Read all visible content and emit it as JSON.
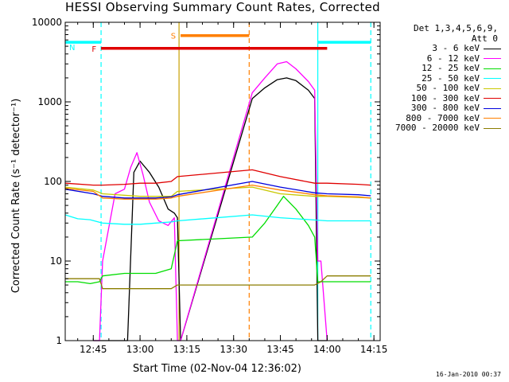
{
  "title": "HESSI Observing Summary Count Rates, Corrected",
  "footer_date": "16-Jan-2010 00:37",
  "legend_title_1": "Det 1,3,4,5,6,9,",
  "legend_title_2": "Att 0",
  "chart_data": {
    "type": "line",
    "xlabel": "Start Time (02-Nov-04 12:36:02)",
    "ylabel": "Corrected Count Rate (s⁻¹ detector⁻¹)",
    "yscale": "log",
    "ylim": [
      1,
      10000
    ],
    "xlim": [
      "12:36",
      "14:17"
    ],
    "x_ticks": [
      "12:45",
      "13:00",
      "13:15",
      "13:30",
      "13:45",
      "14:00",
      "14:15"
    ],
    "y_ticks": [
      "1",
      "10",
      "100",
      "1000",
      "10000"
    ],
    "legend_placement": "right",
    "flags": [
      {
        "label": "F",
        "color": "#e00000",
        "start": "12:47:30",
        "end": "14:00:00",
        "y": 4700
      },
      {
        "label": "S",
        "color": "#ff7f00",
        "start": "13:13:00",
        "end": "13:35:00",
        "y": 6800
      },
      {
        "label": "N",
        "color": "#00ffff",
        "start": "12:36:00",
        "end": "12:47:30",
        "y": 5600
      },
      {
        "label": "",
        "color": "#00ffff",
        "start": "13:57:00",
        "end": "14:14:00",
        "y": 5600
      }
    ],
    "markers": [
      {
        "time": "12:47:30",
        "color": "#00ffff",
        "style": "dashed"
      },
      {
        "time": "13:12:30",
        "color": "#c8a000",
        "style": "solid"
      },
      {
        "time": "13:35:00",
        "color": "#ff7f00",
        "style": "dashed"
      },
      {
        "time": "13:57:00",
        "color": "#00ffff",
        "style": "solid"
      },
      {
        "time": "14:14:00",
        "color": "#00ffff",
        "style": "dashed"
      }
    ],
    "series": [
      {
        "name": "3 - 6 keV",
        "color": "#000000",
        "x": [
          "12:45",
          "12:48",
          "12:52",
          "12:55",
          "12:56",
          "12:58",
          "13:00",
          "13:03",
          "13:06",
          "13:09",
          "13:11",
          "13:12",
          "13:13",
          "13:36",
          "13:40",
          "13:44",
          "13:47",
          "13:50",
          "13:54",
          "13:56",
          "13:57",
          "13:58",
          "14:00"
        ],
        "y": [
          1,
          1,
          1,
          1,
          1,
          130,
          180,
          130,
          85,
          45,
          40,
          35,
          1,
          1100,
          1500,
          1900,
          2000,
          1850,
          1400,
          1100,
          1,
          1,
          1
        ]
      },
      {
        "name": "6 - 12 keV",
        "color": "#ff00ff",
        "x": [
          "12:45",
          "12:47",
          "12:48",
          "12:52",
          "12:55",
          "12:57",
          "12:59",
          "13:01",
          "13:03",
          "13:06",
          "13:09",
          "13:11",
          "13:12",
          "13:13",
          "13:36",
          "13:40",
          "13:44",
          "13:47",
          "13:50",
          "13:54",
          "13:56",
          "13:57",
          "13:58",
          "14:00"
        ],
        "y": [
          1,
          1,
          10,
          70,
          80,
          150,
          230,
          120,
          55,
          32,
          28,
          35,
          1,
          1,
          1300,
          2000,
          3000,
          3200,
          2600,
          1800,
          1400,
          10,
          10,
          1
        ]
      },
      {
        "name": "12 - 25 keV",
        "color": "#00dd00",
        "x": [
          "12:36",
          "12:40",
          "12:44",
          "12:47",
          "12:48",
          "12:55",
          "13:00",
          "13:05",
          "13:10",
          "13:11",
          "13:12",
          "13:36",
          "13:40",
          "13:44",
          "13:46",
          "13:50",
          "13:54",
          "13:56",
          "13:57",
          "14:00",
          "14:05",
          "14:10",
          "14:14"
        ],
        "y": [
          5.5,
          5.5,
          5.2,
          5.5,
          6.5,
          7,
          7,
          7,
          8,
          12,
          18,
          20,
          30,
          50,
          65,
          45,
          28,
          20,
          5.5,
          5.5,
          5.5,
          5.5,
          5.5
        ]
      },
      {
        "name": "25 - 50 keV",
        "color": "#00ffff",
        "x": [
          "12:36",
          "12:40",
          "12:44",
          "12:48",
          "12:55",
          "13:00",
          "13:05",
          "13:10",
          "13:12",
          "13:36",
          "13:45",
          "13:55",
          "14:00",
          "14:05",
          "14:10",
          "14:14"
        ],
        "y": [
          38,
          34,
          33,
          30,
          29,
          29,
          30,
          31,
          32,
          38,
          35,
          33,
          32,
          32,
          32,
          32
        ]
      },
      {
        "name": "50 - 100 keV",
        "color": "#c8c800",
        "x": [
          "12:36",
          "12:45",
          "12:48",
          "13:00",
          "13:10",
          "13:12",
          "13:36",
          "13:45",
          "13:56",
          "14:00",
          "14:10",
          "14:14"
        ],
        "y": [
          85,
          78,
          70,
          65,
          65,
          75,
          85,
          70,
          65,
          65,
          63,
          62
        ]
      },
      {
        "name": "100 - 300 keV",
        "color": "#e00000",
        "x": [
          "12:36",
          "12:45",
          "12:48",
          "12:55",
          "13:00",
          "13:05",
          "13:10",
          "13:12",
          "13:36",
          "13:45",
          "13:56",
          "14:00",
          "14:10",
          "14:14"
        ],
        "y": [
          95,
          90,
          90,
          92,
          95,
          95,
          100,
          115,
          140,
          115,
          95,
          95,
          92,
          90
        ]
      },
      {
        "name": "300 - 800 keV",
        "color": "#0000dd",
        "x": [
          "12:36",
          "12:45",
          "12:48",
          "12:55",
          "13:00",
          "13:05",
          "13:10",
          "13:12",
          "13:36",
          "13:45",
          "13:56",
          "14:00",
          "14:10",
          "14:14"
        ],
        "y": [
          80,
          70,
          65,
          62,
          62,
          62,
          64,
          68,
          100,
          85,
          72,
          70,
          68,
          66
        ]
      },
      {
        "name": "800 - 7000 keV",
        "color": "#ff7f00",
        "x": [
          "12:36",
          "12:45",
          "12:48",
          "12:55",
          "13:00",
          "13:05",
          "13:10",
          "13:12",
          "13:36",
          "13:45",
          "13:56",
          "14:00",
          "14:10",
          "14:14"
        ],
        "y": [
          82,
          75,
          62,
          60,
          60,
          60,
          62,
          65,
          90,
          78,
          68,
          66,
          64,
          62
        ]
      },
      {
        "name": "7000 - 20000 keV",
        "color": "#8b7d00",
        "x": [
          "12:36",
          "12:40",
          "12:44",
          "12:47",
          "12:48",
          "12:55",
          "13:00",
          "13:05",
          "13:10",
          "13:12",
          "13:36",
          "13:45",
          "13:56",
          "13:58",
          "14:00",
          "14:05",
          "14:10",
          "14:14"
        ],
        "y": [
          6,
          6,
          6,
          6,
          4.5,
          4.5,
          4.5,
          4.5,
          4.5,
          5,
          5,
          5,
          5,
          5.5,
          6.5,
          6.5,
          6.5,
          6.5
        ]
      }
    ]
  }
}
